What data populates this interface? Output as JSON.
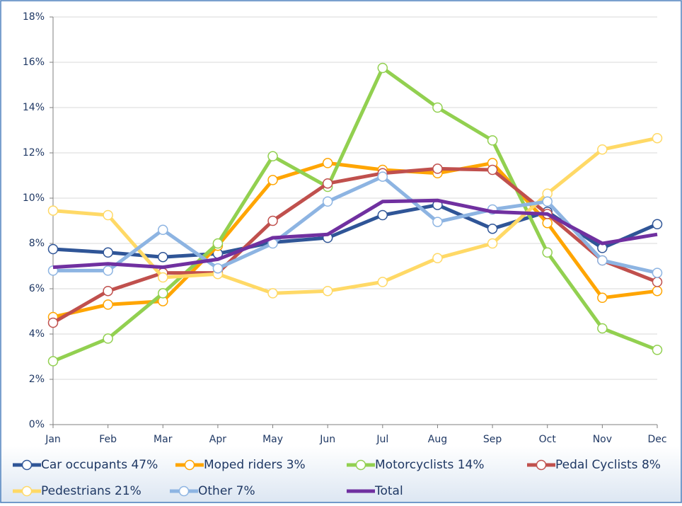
{
  "chart_data": {
    "type": "line",
    "categories": [
      "Jan",
      "Feb",
      "Mar",
      "Apr",
      "May",
      "Jun",
      "Jul",
      "Aug",
      "Sep",
      "Oct",
      "Nov",
      "Dec"
    ],
    "ylim": [
      0,
      18
    ],
    "yticks": [
      {
        "value": 0,
        "label": "0%"
      },
      {
        "value": 2,
        "label": "2%"
      },
      {
        "value": 4,
        "label": "4%"
      },
      {
        "value": 6,
        "label": "6%"
      },
      {
        "value": 8,
        "label": "8%"
      },
      {
        "value": 10,
        "label": "10%"
      },
      {
        "value": 12,
        "label": "12%"
      },
      {
        "value": 14,
        "label": "14%"
      },
      {
        "value": 16,
        "label": "16%"
      },
      {
        "value": 18,
        "label": "18%"
      }
    ],
    "grid": true,
    "legend": "bottom",
    "series": [
      {
        "name": "Car occupants 47%",
        "color": "#2f5597",
        "markers": true,
        "values": [
          7.75,
          7.6,
          7.4,
          7.55,
          8.05,
          8.25,
          9.25,
          9.7,
          8.65,
          9.4,
          7.8,
          8.85
        ]
      },
      {
        "name": "Moped riders 3%",
        "color": "#ffa500",
        "markers": true,
        "values": [
          4.75,
          5.3,
          5.45,
          7.9,
          10.8,
          11.55,
          11.25,
          11.1,
          11.55,
          8.9,
          5.6,
          5.9
        ]
      },
      {
        "name": "Motorcyclists 14%",
        "color": "#92d050",
        "markers": true,
        "values": [
          2.8,
          3.8,
          5.8,
          8.0,
          11.85,
          10.5,
          15.75,
          14.0,
          12.55,
          7.6,
          4.25,
          3.3
        ]
      },
      {
        "name": "Pedal Cyclists 8%",
        "color": "#c0504d",
        "markers": true,
        "values": [
          4.5,
          5.9,
          6.7,
          6.7,
          9.0,
          10.65,
          11.1,
          11.3,
          11.25,
          9.3,
          7.25,
          6.3
        ]
      },
      {
        "name": "Pedestrians 21%",
        "color": "#ffd966",
        "markers": true,
        "values": [
          9.45,
          9.25,
          6.5,
          6.65,
          5.8,
          5.9,
          6.3,
          7.35,
          8.0,
          10.2,
          12.15,
          12.65
        ]
      },
      {
        "name": "Other 7%",
        "color": "#8db4e2",
        "markers": true,
        "values": [
          6.8,
          6.8,
          8.6,
          6.9,
          8.0,
          9.85,
          10.95,
          8.95,
          9.5,
          9.85,
          7.25,
          6.7
        ]
      },
      {
        "name": "Total",
        "color": "#7030a0",
        "markers": false,
        "values": [
          6.95,
          7.1,
          6.95,
          7.3,
          8.25,
          8.4,
          9.85,
          9.9,
          9.4,
          9.3,
          8.0,
          8.4
        ]
      }
    ]
  }
}
